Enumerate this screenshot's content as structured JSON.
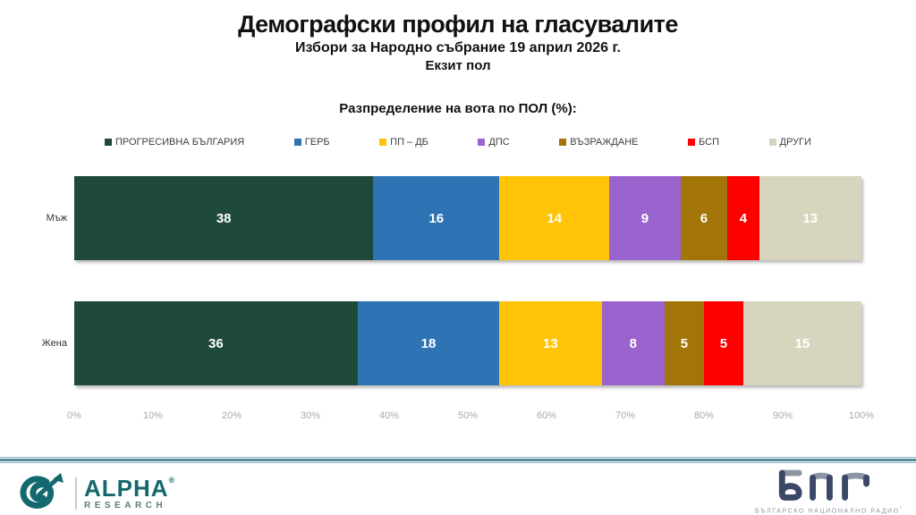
{
  "header": {
    "title": "Демографски профил на гласувалите",
    "subtitle": "Избори за Народно събрание 19 април 2026 г.",
    "subtitle2": "Екзит пол"
  },
  "chart_data": {
    "type": "bar",
    "orientation": "horizontal-stacked",
    "title": "Разпределение на вота по ПОЛ (%):",
    "categories": [
      "Мъж",
      "Жена"
    ],
    "series": [
      {
        "name": "ПРОГРЕСИВНА БЪЛГАРИЯ",
        "color": "#1F4A3A",
        "values": [
          38,
          36
        ]
      },
      {
        "name": "ГЕРБ",
        "color": "#2E74B5",
        "values": [
          16,
          18
        ]
      },
      {
        "name": "ПП – ДБ",
        "color": "#FFC408",
        "values": [
          14,
          13
        ]
      },
      {
        "name": "ДПС",
        "color": "#9B63CE",
        "values": [
          9,
          8
        ]
      },
      {
        "name": "ВЪЗРАЖДАНЕ",
        "color": "#A37509",
        "values": [
          6,
          5
        ]
      },
      {
        "name": "БСП",
        "color": "#FD0000",
        "values": [
          4,
          5
        ]
      },
      {
        "name": "ДРУГИ",
        "color": "#D8D5BE",
        "values": [
          13,
          15
        ]
      }
    ],
    "x_ticks": [
      "0%",
      "10%",
      "20%",
      "30%",
      "40%",
      "50%",
      "60%",
      "70%",
      "80%",
      "90%",
      "100%"
    ],
    "xlim": [
      0,
      100
    ],
    "value_labels": "white-bold-centered",
    "grid": false,
    "legend_position": "top"
  },
  "footer": {
    "alpha": {
      "name": "ALPHA",
      "reg": "®",
      "sub": "RESEARCH"
    },
    "bnr": {
      "caption": "БЪЛГАРСКО НАЦИОНАЛНО РАДИО",
      "deg": "°"
    },
    "accent_teal": "#14696E",
    "navy": "#3A4766",
    "separator_color": "#54889B"
  }
}
